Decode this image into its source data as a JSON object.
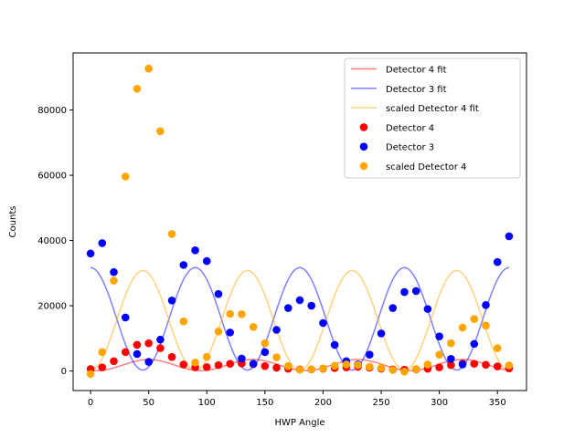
{
  "chart_data": {
    "type": "scatter",
    "xlabel": "HWP Angle",
    "ylabel": "Counts",
    "xlim": [
      -15,
      375
    ],
    "ylim": [
      -6000,
      97500
    ],
    "xticks": [
      0,
      50,
      100,
      150,
      200,
      250,
      300,
      350
    ],
    "yticks": [
      0,
      20000,
      40000,
      60000,
      80000
    ],
    "legend_position": "top-right",
    "fits": [
      {
        "name": "Detector 4 fit",
        "color": "#ff0000",
        "alpha": 0.5,
        "offset": 1800,
        "amplitude": 1700,
        "period": 90,
        "phase_deg": 50
      },
      {
        "name": "Detector 3 fit",
        "color": "#0000ff",
        "alpha": 0.5,
        "offset": 16000,
        "amplitude": 15700,
        "period": 90,
        "phase_deg": 0
      },
      {
        "name": "scaled Detector 4 fit",
        "color": "#ffa500",
        "alpha": 0.5,
        "offset": 15500,
        "amplitude": 15300,
        "period": 90,
        "phase_deg": 45
      }
    ],
    "series": [
      {
        "name": "Detector 4",
        "color": "#ff0000",
        "points": [
          [
            0,
            600
          ],
          [
            10,
            1100
          ],
          [
            20,
            3000
          ],
          [
            30,
            5800
          ],
          [
            40,
            8000
          ],
          [
            50,
            8500
          ],
          [
            60,
            7000
          ],
          [
            70,
            4300
          ],
          [
            80,
            2000
          ],
          [
            90,
            1100
          ],
          [
            100,
            1200
          ],
          [
            110,
            1800
          ],
          [
            120,
            2200
          ],
          [
            130,
            2300
          ],
          [
            140,
            2100
          ],
          [
            150,
            1500
          ],
          [
            160,
            1000
          ],
          [
            170,
            700
          ],
          [
            180,
            500
          ],
          [
            190,
            500
          ],
          [
            200,
            700
          ],
          [
            210,
            900
          ],
          [
            220,
            1100
          ],
          [
            230,
            1300
          ],
          [
            240,
            1000
          ],
          [
            250,
            700
          ],
          [
            260,
            500
          ],
          [
            270,
            400
          ],
          [
            280,
            500
          ],
          [
            290,
            700
          ],
          [
            300,
            1100
          ],
          [
            310,
            1800
          ],
          [
            320,
            2300
          ],
          [
            330,
            2200
          ],
          [
            340,
            1900
          ],
          [
            350,
            1400
          ],
          [
            360,
            800
          ]
        ]
      },
      {
        "name": "Detector 3",
        "color": "#0000ff",
        "points": [
          [
            0,
            36000
          ],
          [
            10,
            39200
          ],
          [
            20,
            30300
          ],
          [
            30,
            16400
          ],
          [
            40,
            5200
          ],
          [
            50,
            2800
          ],
          [
            60,
            9600
          ],
          [
            70,
            21600
          ],
          [
            80,
            32500
          ],
          [
            90,
            37000
          ],
          [
            100,
            33700
          ],
          [
            110,
            23600
          ],
          [
            120,
            11800
          ],
          [
            130,
            3800
          ],
          [
            140,
            2200
          ],
          [
            150,
            5800
          ],
          [
            160,
            12600
          ],
          [
            170,
            19300
          ],
          [
            180,
            21700
          ],
          [
            190,
            20000
          ],
          [
            200,
            14700
          ],
          [
            210,
            8000
          ],
          [
            220,
            3000
          ],
          [
            230,
            2000
          ],
          [
            240,
            5000
          ],
          [
            250,
            11500
          ],
          [
            260,
            19300
          ],
          [
            270,
            24200
          ],
          [
            280,
            24500
          ],
          [
            290,
            19000
          ],
          [
            300,
            10600
          ],
          [
            310,
            3700
          ],
          [
            320,
            2000
          ],
          [
            330,
            8300
          ],
          [
            340,
            20200
          ],
          [
            350,
            33400
          ],
          [
            360,
            41300
          ]
        ]
      },
      {
        "name": "scaled Detector 4",
        "color": "#ffa500",
        "points": [
          [
            0,
            -900
          ],
          [
            10,
            5800
          ],
          [
            20,
            27700
          ],
          [
            30,
            59600
          ],
          [
            40,
            86500
          ],
          [
            50,
            92700
          ],
          [
            60,
            73500
          ],
          [
            70,
            42000
          ],
          [
            80,
            15200
          ],
          [
            90,
            2600
          ],
          [
            100,
            4300
          ],
          [
            110,
            12100
          ],
          [
            120,
            17500
          ],
          [
            130,
            17400
          ],
          [
            140,
            13500
          ],
          [
            150,
            8500
          ],
          [
            160,
            4200
          ],
          [
            170,
            1500
          ],
          [
            180,
            400
          ],
          [
            190,
            500
          ],
          [
            200,
            800
          ],
          [
            210,
            1600
          ],
          [
            220,
            2000
          ],
          [
            230,
            1800
          ],
          [
            240,
            1300
          ],
          [
            250,
            900
          ],
          [
            260,
            300
          ],
          [
            270,
            -200
          ],
          [
            280,
            600
          ],
          [
            290,
            2000
          ],
          [
            300,
            5000
          ],
          [
            310,
            8500
          ],
          [
            320,
            13300
          ],
          [
            330,
            15900
          ],
          [
            340,
            13900
          ],
          [
            350,
            7000
          ],
          [
            360,
            1700
          ]
        ]
      }
    ]
  }
}
